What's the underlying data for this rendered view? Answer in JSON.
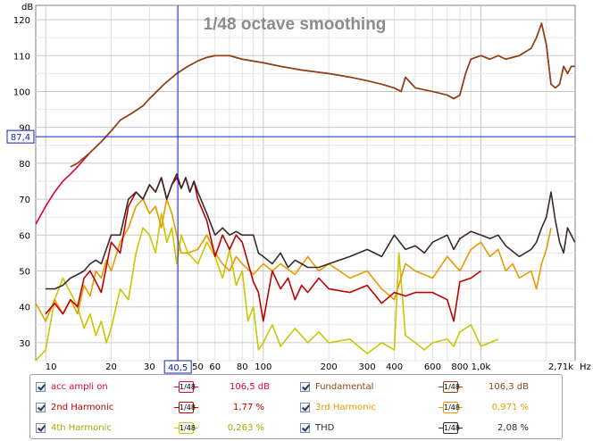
{
  "chart_data": {
    "type": "line",
    "title": "1/48 octave smoothing",
    "ylabel": "dB",
    "xlabel": "Hz",
    "x_scale": "log",
    "xlim": [
      9,
      2710
    ],
    "ylim": [
      25,
      124
    ],
    "x_ticks": [
      {
        "v": 10,
        "label": "10"
      },
      {
        "v": 20,
        "label": "20"
      },
      {
        "v": 30,
        "label": "30"
      },
      {
        "v": 50,
        "label": "50"
      },
      {
        "v": 60,
        "label": "60"
      },
      {
        "v": 80,
        "label": "80"
      },
      {
        "v": 100,
        "label": "100"
      },
      {
        "v": 200,
        "label": "200"
      },
      {
        "v": 300,
        "label": "300"
      },
      {
        "v": 400,
        "label": "400"
      },
      {
        "v": 600,
        "label": "600"
      },
      {
        "v": 800,
        "label": "800"
      },
      {
        "v": 1000,
        "label": "1,0k"
      },
      {
        "v": 2710,
        "label": "2,71k"
      }
    ],
    "y_ticks": [
      30,
      40,
      50,
      60,
      70,
      80,
      90,
      100,
      110,
      120
    ],
    "grid": true,
    "cursor": {
      "x": 40.5,
      "y": 87.4,
      "x_label": "40,5",
      "y_label": "87,4"
    },
    "series": [
      {
        "name": "acc ampli on",
        "color": "#e0003c",
        "x": [
          9,
          10,
          11,
          12,
          13,
          14,
          16,
          18,
          20,
          22,
          25,
          28,
          30,
          35,
          40,
          45,
          50,
          55,
          60,
          70,
          80,
          100,
          120,
          150,
          200,
          250,
          300,
          350,
          400,
          430,
          450,
          500,
          600,
          700,
          750,
          800,
          850,
          900,
          1000,
          1100,
          1200,
          1300,
          1500,
          1700,
          1800,
          1900,
          2000,
          2100,
          2200,
          2300,
          2400,
          2500,
          2600,
          2700
        ],
        "y": [
          63,
          68,
          72,
          75,
          77,
          79,
          83,
          86,
          89,
          92,
          94,
          96,
          98,
          102,
          105,
          107,
          108.5,
          109.5,
          110,
          110,
          109,
          108,
          107,
          106,
          105,
          104,
          103,
          102,
          101,
          100,
          104,
          101,
          100,
          99,
          98,
          99,
          105,
          109,
          110,
          109,
          110,
          109,
          110,
          112,
          115,
          119,
          113,
          102,
          101,
          102,
          107,
          105,
          107,
          107
        ]
      },
      {
        "name": "Fundamental",
        "color": "#8b4513",
        "x": [
          13,
          14,
          16,
          18,
          20,
          22,
          25,
          28,
          30,
          35,
          40,
          45,
          50,
          55,
          60,
          70,
          80,
          100,
          120,
          150,
          200,
          250,
          300,
          350,
          400,
          430,
          450,
          500,
          600,
          700,
          750,
          800,
          850,
          900,
          1000,
          1100,
          1200,
          1300,
          1500,
          1700,
          1800,
          1900,
          2000,
          2100,
          2200,
          2300,
          2400,
          2500,
          2600,
          2700
        ],
        "y": [
          79,
          80,
          83,
          86,
          89,
          92,
          94,
          96,
          98,
          102,
          105,
          107,
          108.5,
          109.5,
          110,
          110,
          109,
          108,
          107,
          106,
          105,
          104,
          103,
          102,
          101,
          100,
          104,
          101,
          100,
          99,
          98,
          99,
          105,
          109,
          110,
          109,
          110,
          109,
          110,
          112,
          115,
          119,
          113,
          102,
          101,
          102,
          107,
          105,
          107,
          107
        ]
      },
      {
        "name": "2nd Harmonic",
        "color": "#c00000",
        "x": [
          10,
          11,
          12,
          13,
          14,
          15,
          16,
          17,
          18,
          20,
          22,
          24,
          26,
          28,
          30,
          32,
          34,
          36,
          38,
          40,
          42,
          44,
          46,
          48,
          50,
          55,
          60,
          65,
          70,
          75,
          80,
          90,
          95,
          100,
          110,
          120,
          130,
          140,
          150,
          160,
          180,
          200,
          250,
          300,
          350,
          400,
          450,
          500,
          600,
          700,
          750,
          800,
          900,
          1000
        ],
        "y": [
          38,
          41,
          38,
          42,
          40,
          48,
          50,
          47,
          44,
          58,
          55,
          68,
          72,
          70,
          74,
          72,
          76,
          70,
          74,
          76,
          73,
          76,
          72,
          75,
          70,
          64,
          54,
          60,
          56,
          60,
          58,
          47,
          44,
          36,
          50,
          45,
          48,
          42,
          46,
          44,
          48,
          45,
          44,
          46,
          41,
          44,
          43,
          44,
          44,
          42,
          36,
          47,
          48,
          50
        ]
      },
      {
        "name": "3rd Harmonic",
        "color": "#e89a00",
        "x": [
          9,
          10,
          11,
          12,
          13,
          14,
          15,
          16,
          17,
          18,
          19,
          20,
          22,
          24,
          26,
          28,
          30,
          32,
          34,
          36,
          38,
          40,
          42,
          45,
          50,
          55,
          60,
          65,
          70,
          75,
          80,
          90,
          100,
          110,
          120,
          140,
          160,
          180,
          200,
          250,
          300,
          350,
          400,
          450,
          500,
          600,
          700,
          800,
          900,
          1000,
          1100,
          1200,
          1300,
          1400,
          1500,
          1700,
          1800,
          1900,
          2000,
          2100
        ],
        "y": [
          41,
          36,
          42,
          38,
          42,
          38,
          46,
          43,
          50,
          48,
          53,
          50,
          58,
          62,
          68,
          70,
          66,
          68,
          62,
          70,
          66,
          60,
          55,
          55,
          56,
          60,
          55,
          52,
          50,
          54,
          52,
          49,
          52,
          50,
          52,
          49,
          54,
          50,
          52,
          48,
          50,
          45,
          42,
          52,
          50,
          48,
          54,
          50,
          56,
          58,
          54,
          56,
          50,
          52,
          48,
          50,
          45,
          52,
          56,
          62
        ]
      },
      {
        "name": "4th Harmonic",
        "color": "#c8c800",
        "x": [
          9,
          10,
          11,
          12,
          13,
          14,
          15,
          16,
          17,
          18,
          19,
          20,
          22,
          24,
          26,
          28,
          30,
          32,
          34,
          36,
          38,
          40,
          42,
          45,
          50,
          55,
          60,
          65,
          70,
          75,
          80,
          85,
          90,
          95,
          100,
          110,
          120,
          140,
          160,
          180,
          200,
          250,
          300,
          350,
          400,
          420,
          450,
          500,
          550,
          600,
          700,
          750,
          800,
          900,
          1000,
          1100,
          1200
        ],
        "y": [
          25,
          28,
          42,
          48,
          44,
          40,
          34,
          38,
          32,
          36,
          30,
          34,
          45,
          42,
          55,
          62,
          60,
          55,
          66,
          58,
          62,
          52,
          60,
          55,
          52,
          58,
          54,
          48,
          56,
          46,
          50,
          36,
          40,
          28,
          30,
          35,
          29,
          34,
          30,
          33,
          30,
          31,
          27,
          30,
          28,
          55,
          32,
          30,
          28,
          30,
          31,
          29,
          33,
          35,
          29,
          30,
          31
        ]
      },
      {
        "name": "THD",
        "color": "#3a2a2a",
        "x": [
          10,
          11,
          12,
          13,
          14,
          15,
          16,
          17,
          18,
          20,
          22,
          24,
          26,
          28,
          30,
          32,
          34,
          36,
          38,
          40,
          42,
          44,
          46,
          48,
          50,
          55,
          60,
          65,
          70,
          75,
          80,
          90,
          95,
          100,
          110,
          120,
          130,
          140,
          150,
          160,
          180,
          200,
          250,
          300,
          350,
          400,
          450,
          500,
          550,
          600,
          700,
          750,
          800,
          900,
          1000,
          1100,
          1200,
          1300,
          1500,
          1700,
          1800,
          1900,
          2000,
          2100,
          2200,
          2300,
          2400,
          2500,
          2600,
          2700
        ],
        "y": [
          45,
          45,
          46,
          48,
          49,
          50,
          52,
          53,
          52,
          60,
          60,
          70,
          72,
          70,
          74,
          72,
          76,
          70,
          74,
          77,
          73,
          76,
          72,
          75,
          72,
          66,
          60,
          62,
          60,
          61,
          60,
          60,
          55,
          54,
          52,
          55,
          51,
          53,
          52,
          51,
          51,
          52,
          54,
          56,
          54,
          60,
          56,
          57,
          55,
          58,
          60,
          56,
          59,
          61,
          60,
          59,
          60,
          57,
          54,
          56,
          58,
          62,
          65,
          72,
          64,
          58,
          55,
          62,
          60,
          58
        ]
      }
    ]
  },
  "legend": {
    "smoothing_label": "1/48",
    "items": [
      {
        "name": "acc ampli on",
        "value": "106,5 dB",
        "color": "#e0003c"
      },
      {
        "name": "Fundamental",
        "value": "106,3 dB",
        "color": "#8b4513"
      },
      {
        "name": "2nd Harmonic",
        "value": "1,77 %",
        "color": "#c00000"
      },
      {
        "name": "3rd Harmonic",
        "value": "0,971 %",
        "color": "#e89a00"
      },
      {
        "name": "4th Harmonic",
        "value": "0,263 %",
        "color": "#c8c800"
      },
      {
        "name": "THD",
        "value": "2,08 %",
        "color": "#3a2a2a"
      }
    ]
  }
}
